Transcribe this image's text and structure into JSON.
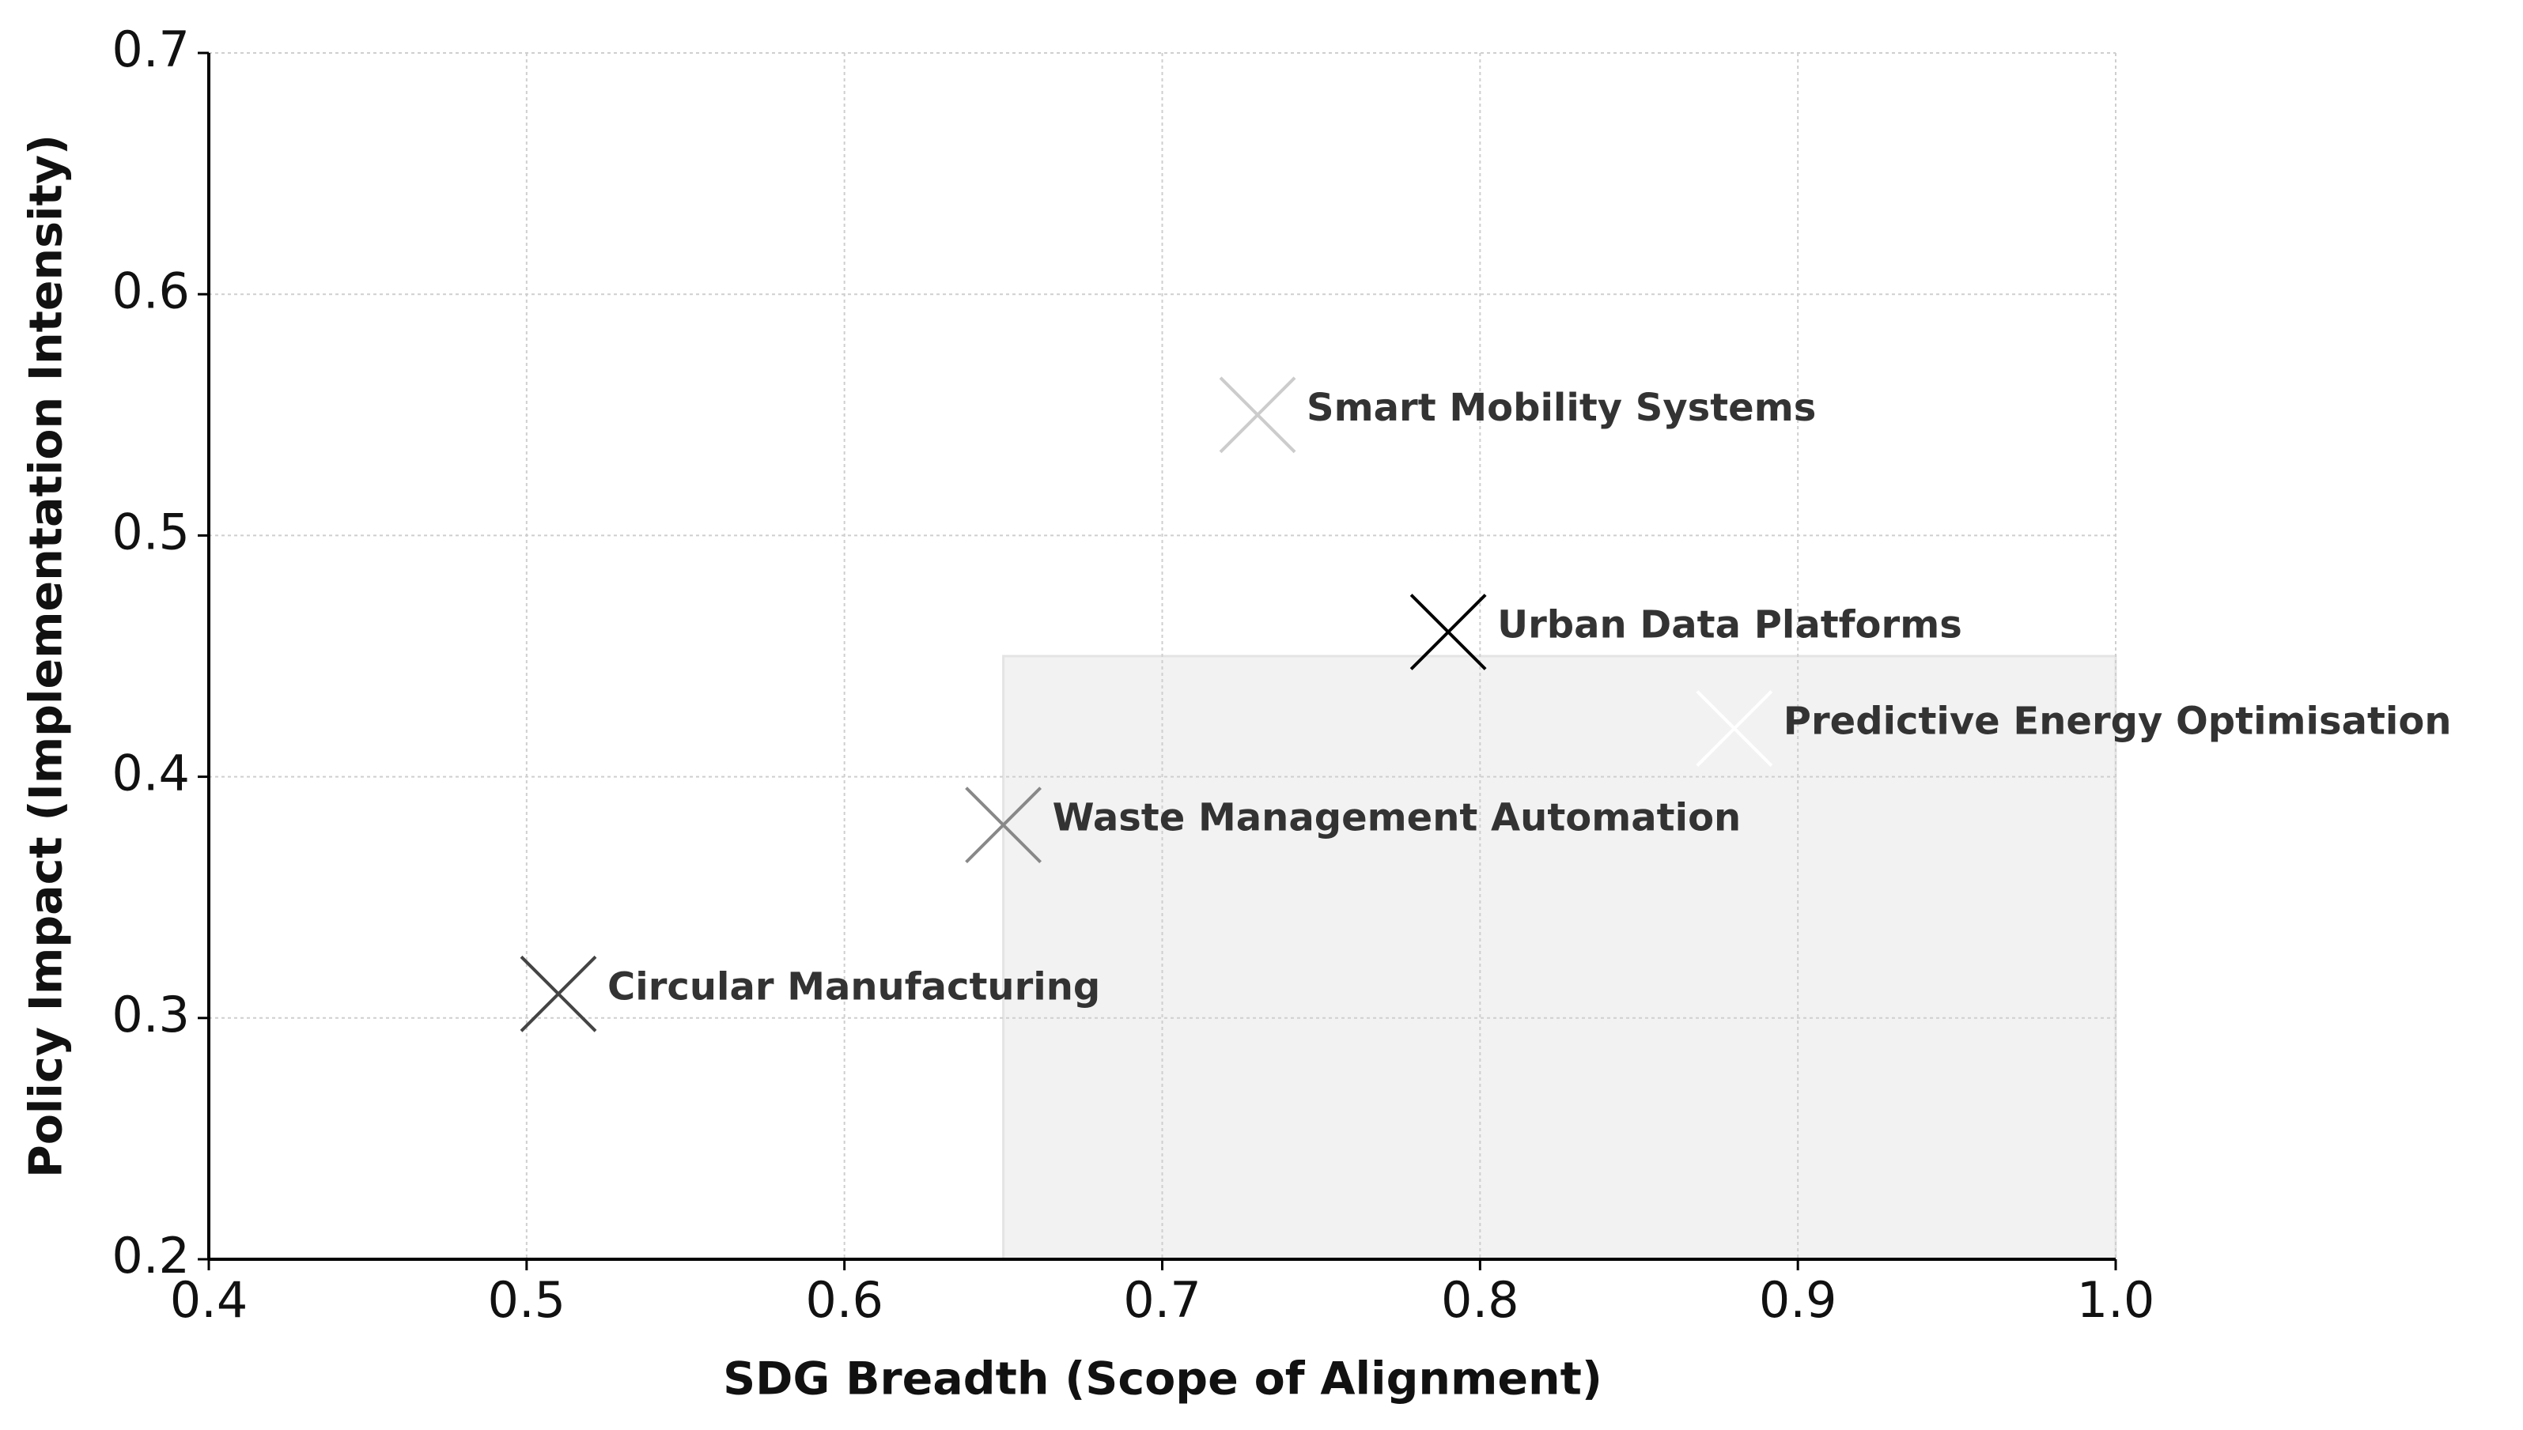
{
  "chart_data": {
    "type": "scatter",
    "x_label": "SDG Breadth (Scope of Alignment)",
    "y_label": "Policy Impact (Implementation Intensity)",
    "labels": [
      "Circular Manufacturing",
      "Waste Management Automation",
      "Smart Mobility Systems",
      "Urban Data Platforms",
      "Predictive Energy Optimisation"
    ],
    "x": [
      0.51,
      0.65,
      0.73,
      0.79,
      0.88
    ],
    "values": [
      0.31,
      0.38,
      0.55,
      0.46,
      0.42
    ],
    "colors": [
      "#444444",
      "#888888",
      "#cccccc",
      "#000000",
      "#ffffff"
    ],
    "shaded_region": {
      "x": [
        0.65,
        1.0
      ],
      "y": [
        0.2,
        0.45
      ],
      "color": "#f2f2f2"
    },
    "xlim": [
      0.4,
      1.0
    ],
    "ylim": [
      0.2,
      0.7
    ],
    "xticks": [
      0.4,
      0.5,
      0.6,
      0.7,
      0.8,
      0.9,
      {
        "value": 1.0,
        "label": "1.0"
      }
    ],
    "yticks": [
      0.2,
      0.3,
      0.4,
      0.5,
      0.6,
      0.7
    ],
    "grid": true
  }
}
